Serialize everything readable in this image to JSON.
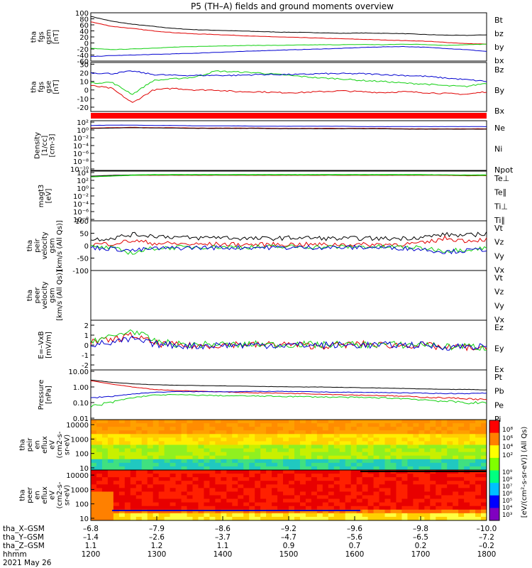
{
  "title": "P5 (TH–A) fields and ground moments overview",
  "date": "2021 May 26",
  "colors": {
    "black": "#000000",
    "red": "#e00000",
    "green": "#10d010",
    "blue": "#0000d0"
  },
  "chart_data": [
    {
      "id": "fgs_gsm",
      "type": "line",
      "ylabel": [
        "tha",
        "fgs",
        "gsm",
        "[nT]"
      ],
      "yticks": [
        100,
        80,
        60,
        40,
        20,
        0,
        -20,
        -40,
        -60
      ],
      "ylim": [
        -60,
        100
      ],
      "series": [
        {
          "name": "Bt",
          "color": "black",
          "values": [
            88,
            72,
            62,
            55,
            48,
            44,
            42,
            40,
            38,
            36,
            35,
            34,
            32,
            33,
            32,
            31,
            28,
            26,
            25,
            27
          ]
        },
        {
          "name": "bz",
          "color": "red",
          "values": [
            70,
            55,
            48,
            40,
            34,
            30,
            28,
            25,
            22,
            20,
            18,
            16,
            14,
            12,
            10,
            8,
            6,
            2,
            -2,
            -4
          ]
        },
        {
          "name": "by",
          "color": "green",
          "values": [
            -18,
            -22,
            -20,
            -17,
            -14,
            -12,
            -10,
            -9,
            -8,
            -8,
            -7,
            -6,
            -6,
            -5,
            -6,
            -4,
            -5,
            -8,
            -6,
            -4
          ]
        },
        {
          "name": "bx",
          "color": "blue",
          "values": [
            -45,
            -42,
            -40,
            -38,
            -36,
            -34,
            -31,
            -29,
            -26,
            -24,
            -22,
            -20,
            -18,
            -15,
            -13,
            -12,
            -14,
            -18,
            -22,
            -28
          ]
        }
      ]
    },
    {
      "id": "fgs_gse",
      "type": "line",
      "ylabel": [
        "tha",
        "fgs",
        "gse",
        "[nT]"
      ],
      "yticks": [
        30,
        20,
        10,
        0,
        -10,
        -20
      ],
      "ylim": [
        -25,
        32
      ],
      "series": [
        {
          "name": "Bz",
          "color": "red",
          "values": [
            5,
            2,
            -15,
            0,
            2,
            0,
            0,
            -2,
            -2,
            -3,
            -3,
            -2,
            -1,
            -2,
            -3,
            -2,
            -3,
            -4,
            -5,
            -2
          ]
        },
        {
          "name": "By",
          "color": "green",
          "values": [
            8,
            9,
            -5,
            11,
            13,
            15,
            22,
            21,
            20,
            18,
            16,
            14,
            13,
            11,
            10,
            8,
            7,
            5,
            4,
            8
          ]
        },
        {
          "name": "Bx",
          "color": "blue",
          "values": [
            20,
            19,
            22,
            18,
            17,
            17,
            17,
            17,
            18,
            18,
            18,
            19,
            19,
            19,
            18,
            17,
            16,
            14,
            12,
            10
          ]
        }
      ]
    },
    {
      "id": "density",
      "type": "line",
      "ylabel": [
        "Density",
        "[1/cc]",
        "[cm-3]"
      ],
      "yticks": [
        "10²",
        "10⁰",
        "10⁻²",
        "10⁻⁴",
        "10⁻⁶",
        "10⁻⁸",
        "10⁻¹⁰"
      ],
      "ylim": [
        -11,
        2.5
      ],
      "log": true,
      "series": [
        {
          "name": "Ne",
          "color": "red",
          "values": [
            0.5,
            0.6,
            0.7,
            0.6,
            0.6,
            0.5,
            0.5,
            0.5,
            0.5,
            0.4,
            0.4,
            0.4,
            0.4,
            0.4,
            0.4,
            0.3,
            0.3,
            0.3,
            0.3,
            0.3
          ]
        },
        {
          "name": "Ni",
          "color": "black",
          "values": [
            0.4,
            0.5,
            0.6,
            0.5,
            0.5,
            0.4,
            0.4,
            0.4,
            0.4,
            0.3,
            0.3,
            0.3,
            0.3,
            0.3,
            0.3,
            0.2,
            0.2,
            0.2,
            0.2,
            0.2
          ]
        },
        {
          "name": "Npot",
          "color": "blue",
          "values": [
            1.2,
            1.3,
            1.3,
            1.2,
            1.2,
            1.1,
            1.1,
            1.1,
            1.0,
            1.0,
            1.0,
            1.0,
            1.0,
            0.9,
            0.9,
            0.9,
            0.9,
            0.9,
            0.9,
            0.9
          ]
        }
      ]
    },
    {
      "id": "temperature",
      "type": "line",
      "ylabel": [
        "magt3",
        "[eV]"
      ],
      "yticks": [
        "10⁴",
        "10²",
        "10⁰",
        "10⁻²",
        "10⁻⁴",
        "10⁻⁶",
        "10⁻⁸"
      ],
      "ylim": [
        -8.5,
        4.5
      ],
      "log": true,
      "series": [
        {
          "name": "Te⊥",
          "color": "red",
          "values": [
            3.1,
            3.3,
            3.4,
            3.4,
            3.4,
            3.4,
            3.4,
            3.4,
            3.4,
            3.4,
            3.4,
            3.4,
            3.4,
            3.4,
            3.4,
            3.4,
            3.4,
            3.4,
            3.3,
            3.3
          ]
        },
        {
          "name": "Te∥",
          "color": "black",
          "values": [
            3.2,
            3.4,
            3.5,
            3.5,
            3.5,
            3.5,
            3.5,
            3.5,
            3.5,
            3.5,
            3.5,
            3.5,
            3.5,
            3.5,
            3.5,
            3.5,
            3.5,
            3.5,
            3.4,
            3.4
          ]
        },
        {
          "name": "Ti⊥",
          "color": "green",
          "values": [
            3.0,
            3.2,
            3.5,
            3.6,
            3.6,
            3.6,
            3.6,
            3.6,
            3.6,
            3.6,
            3.6,
            3.6,
            3.6,
            3.6,
            3.6,
            3.6,
            3.6,
            3.5,
            3.5,
            3.5
          ]
        },
        {
          "name": "Ti∥",
          "color": "green",
          "values": [
            3.0,
            3.2,
            3.4,
            3.5,
            3.5,
            3.5,
            3.5,
            3.5,
            3.5,
            3.5,
            3.5,
            3.5,
            3.5,
            3.5,
            3.5,
            3.5,
            3.5,
            3.5,
            3.4,
            3.4
          ]
        }
      ]
    },
    {
      "id": "peir_velocity",
      "type": "line",
      "ylabel": [
        "tha",
        "peir",
        "velocity",
        "gsm",
        "[km/s (All Qs)]"
      ],
      "yticks": [
        100,
        50,
        0,
        -50,
        -100
      ],
      "ylim": [
        -100,
        100
      ],
      "series": [
        {
          "name": "Vt",
          "color": "black",
          "values": [
            25,
            30,
            45,
            40,
            35,
            30,
            35,
            30,
            28,
            30,
            32,
            30,
            28,
            30,
            28,
            30,
            35,
            45,
            40,
            50
          ]
        },
        {
          "name": "Vz",
          "color": "red",
          "values": [
            5,
            8,
            20,
            10,
            8,
            5,
            6,
            5,
            4,
            5,
            5,
            4,
            5,
            4,
            5,
            6,
            10,
            30,
            20,
            25
          ]
        },
        {
          "name": "Vy",
          "color": "green",
          "values": [
            -5,
            -10,
            -30,
            -10,
            -8,
            -5,
            -5,
            -6,
            -5,
            -5,
            -4,
            -5,
            -5,
            -4,
            -5,
            -6,
            -10,
            -20,
            -15,
            -10
          ]
        },
        {
          "name": "Vx",
          "color": "blue",
          "values": [
            -8,
            -12,
            -20,
            -12,
            -10,
            -8,
            -8,
            -8,
            -7,
            -8,
            -8,
            -7,
            -8,
            -7,
            -8,
            -10,
            -15,
            -25,
            -20,
            -15
          ]
        }
      ]
    },
    {
      "id": "peer_velocity",
      "type": "line",
      "ylabel": [
        "tha",
        "peer",
        "velocity",
        "gsm",
        "[km/s (All Qs)]"
      ],
      "yticks": [],
      "ylim": [
        -100,
        100
      ],
      "series": [
        {
          "name": "Vt",
          "color": "black",
          "values": []
        },
        {
          "name": "Vz",
          "color": "red",
          "values": []
        },
        {
          "name": "Vy",
          "color": "green",
          "values": []
        },
        {
          "name": "Vx",
          "color": "blue",
          "values": []
        }
      ]
    },
    {
      "id": "efield",
      "type": "line",
      "ylabel": [
        "E=–VxB",
        "[mV/m]"
      ],
      "yticks": [
        2,
        1,
        0,
        -1,
        -2
      ],
      "ylim": [
        -2.5,
        2.5
      ],
      "series": [
        {
          "name": "Ez",
          "color": "red",
          "values": [
            0.3,
            0.5,
            1.0,
            0.2,
            0.0,
            -0.1,
            0.0,
            0.1,
            0.0,
            0.1,
            0.0,
            -0.1,
            0.0,
            0.1,
            0.0,
            0.0,
            0.0,
            -0.3,
            -0.2,
            -0.5
          ]
        },
        {
          "name": "Ey",
          "color": "green",
          "values": [
            0.5,
            0.8,
            1.5,
            0.4,
            0.1,
            0.0,
            0.1,
            0.0,
            0.1,
            0.0,
            0.1,
            0.0,
            0.1,
            0.0,
            0.1,
            0.0,
            0.1,
            -0.2,
            -0.1,
            -0.3
          ]
        },
        {
          "name": "Ex",
          "color": "blue",
          "values": [
            0.1,
            0.2,
            0.6,
            0.1,
            0.0,
            -0.1,
            0.0,
            0.0,
            0.0,
            0.0,
            0.0,
            0.0,
            0.0,
            0.0,
            0.0,
            0.0,
            0.0,
            -0.2,
            -0.1,
            -0.2
          ]
        }
      ]
    },
    {
      "id": "pressure",
      "type": "line",
      "ylabel": [
        "Pressure",
        "[nPa]"
      ],
      "yticks": [
        "10.00",
        "1.00",
        "0.10",
        "0.01"
      ],
      "ylim": [
        -2.1,
        1.1
      ],
      "log": true,
      "series": [
        {
          "name": "Pt",
          "color": "black",
          "values": [
            2.8,
            2.0,
            1.6,
            1.4,
            1.3,
            1.25,
            1.2,
            1.15,
            1.1,
            1.05,
            1.0,
            1.0,
            0.95,
            0.9,
            0.85,
            0.8,
            0.75,
            0.7,
            0.7,
            0.65
          ]
        },
        {
          "name": "Pb",
          "color": "red",
          "values": [
            2.5,
            1.5,
            1.0,
            0.7,
            0.6,
            0.55,
            0.5,
            0.45,
            0.42,
            0.4,
            0.38,
            0.35,
            0.32,
            0.3,
            0.28,
            0.25,
            0.22,
            0.2,
            0.18,
            0.15
          ]
        },
        {
          "name": "Pe",
          "color": "green",
          "values": [
            0.05,
            0.1,
            0.2,
            0.3,
            0.32,
            0.3,
            0.28,
            0.27,
            0.26,
            0.25,
            0.24,
            0.23,
            0.22,
            0.21,
            0.2,
            0.18,
            0.15,
            0.12,
            0.1,
            0.09
          ]
        },
        {
          "name": "Pi",
          "color": "blue",
          "values": [
            0.2,
            0.25,
            0.35,
            0.45,
            0.5,
            0.5,
            0.5,
            0.5,
            0.52,
            0.52,
            0.5,
            0.48,
            0.46,
            0.45,
            0.44,
            0.42,
            0.4,
            0.38,
            0.38,
            0.4
          ]
        }
      ]
    },
    {
      "id": "peir_eflux",
      "type": "heatmap",
      "ylabel": [
        "tha",
        "peir",
        "en",
        "eflux",
        "eV",
        "(cm2-s-",
        "sr-eV)"
      ],
      "yticks": [
        10000,
        1000,
        100,
        10
      ],
      "colorbar_label": "[eV/(cm²-s-sr-eV)] (All Qs)",
      "colorbar_ticks": [
        "10⁸",
        "10⁶",
        "10⁴",
        "10²"
      ]
    },
    {
      "id": "peer_eflux",
      "type": "heatmap",
      "ylabel": [
        "tha",
        "peer",
        "en",
        "eflux",
        "eV",
        "(cm2-s-",
        "sr-eV)"
      ],
      "yticks": [
        10000,
        1000,
        100,
        10
      ],
      "colorbar_label": "",
      "colorbar_ticks": [
        "10⁹",
        "10⁸",
        "10⁷",
        "10⁶",
        "10⁵",
        "10⁴",
        "10³"
      ]
    }
  ],
  "x_axis": {
    "rows": [
      {
        "label": "tha_X–GSM",
        "values": [
          "–6.8",
          "–7.9",
          "–8.6",
          "–9.2",
          "–9.6",
          "–9.8",
          "–10.0"
        ]
      },
      {
        "label": "tha_Y–GSM",
        "values": [
          "–1.4",
          "–2.6",
          "–3.7",
          "–4.7",
          "–5.6",
          "–6.5",
          "–7.2"
        ]
      },
      {
        "label": "tha_Z–GSM",
        "values": [
          "1.1",
          "1.2",
          "1.1",
          "0.9",
          "0.7",
          "0.2",
          "–0.2"
        ]
      },
      {
        "label": "hhmm",
        "values": [
          "1200",
          "1300",
          "1400",
          "1500",
          "1600",
          "1700",
          "1800"
        ]
      }
    ]
  }
}
